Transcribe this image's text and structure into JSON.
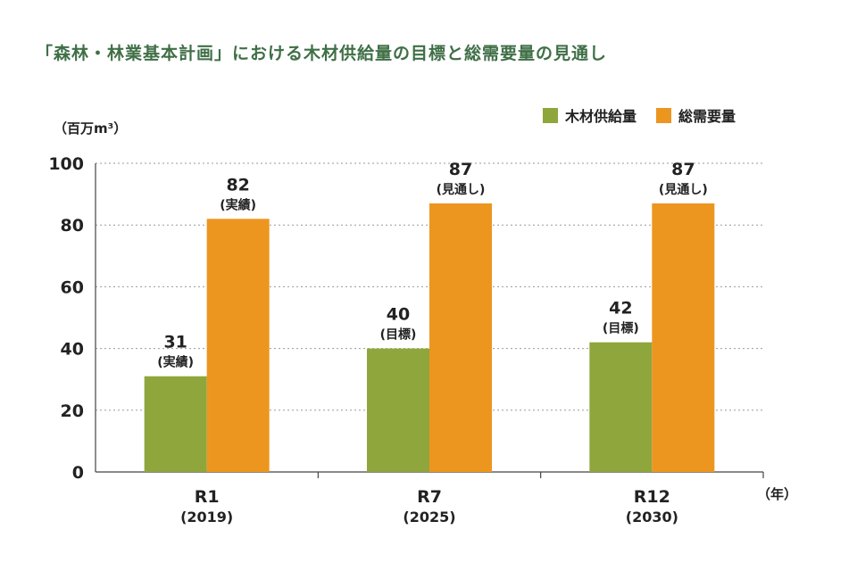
{
  "title": "「森林・林業基本計画」における木材供給量の目標と総需要量の見通し",
  "y_unit": "（百万m³）",
  "x_unit": "（年）",
  "colors": {
    "supply": "#8fa63c",
    "demand": "#ec9620",
    "title": "#3f6f46"
  },
  "chart_data": {
    "type": "bar",
    "title": "「森林・林業基本計画」における木材供給量の目標と総需要量の見通し",
    "categories": [
      "R1",
      "R7",
      "R12"
    ],
    "category_years": [
      "(2019)",
      "(2025)",
      "(2030)"
    ],
    "series": [
      {
        "name": "木材供給量",
        "values": [
          31,
          40,
          42
        ],
        "notes": [
          "(実績)",
          "(目標)",
          "(目標)"
        ]
      },
      {
        "name": "総需要量",
        "values": [
          82,
          87,
          87
        ],
        "notes": [
          "(実績)",
          "(見通し)",
          "(見通し)"
        ]
      }
    ],
    "ylim": [
      0,
      100
    ],
    "yticks": [
      0,
      20,
      40,
      60,
      80,
      100
    ],
    "grid": true,
    "legend": "top-right"
  }
}
